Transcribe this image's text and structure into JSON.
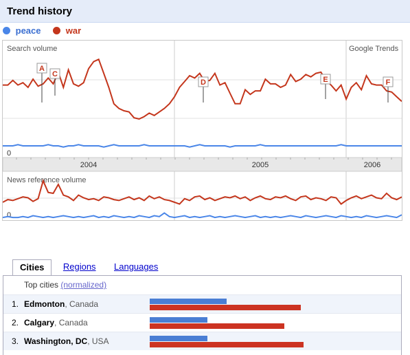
{
  "title": "Trend history",
  "legend": [
    {
      "label": "peace",
      "color": "#4a86e8"
    },
    {
      "label": "war",
      "color": "#c4361c"
    }
  ],
  "chart_data": [
    {
      "type": "line",
      "panel_label": "Search volume",
      "brand": "Google Trends",
      "zero_label": "0",
      "years": [
        "2004",
        "2005",
        "2006"
      ],
      "series": [
        {
          "name": "peace",
          "color": "#4a86e8",
          "values": [
            10,
            10,
            10,
            11,
            10,
            10,
            10,
            10,
            10,
            11,
            10,
            10,
            9,
            10,
            10,
            11,
            10,
            10,
            10,
            10,
            9,
            10,
            11,
            10,
            10,
            10,
            10,
            10,
            11,
            10,
            10,
            10,
            10,
            10,
            10,
            10,
            10,
            9,
            10,
            11,
            10,
            10,
            10,
            10,
            10,
            9,
            10,
            10,
            10,
            10,
            10,
            11,
            10,
            10,
            10,
            10,
            10,
            10,
            10,
            10,
            10,
            10,
            10,
            10,
            10,
            10,
            10,
            11,
            10,
            10,
            10,
            10,
            10,
            10,
            10,
            10,
            10,
            10,
            10,
            10
          ]
        },
        {
          "name": "war",
          "color": "#c4361c",
          "values": [
            62,
            62,
            66,
            62,
            64,
            60,
            67,
            61,
            63,
            68,
            63,
            73,
            60,
            75,
            63,
            61,
            64,
            76,
            82,
            84,
            72,
            60,
            46,
            42,
            40,
            39,
            34,
            33,
            35,
            38,
            36,
            39,
            42,
            46,
            52,
            60,
            65,
            70,
            68,
            72,
            65,
            66,
            72,
            62,
            64,
            55,
            46,
            46,
            58,
            54,
            57,
            57,
            67,
            63,
            63,
            60,
            62,
            71,
            65,
            67,
            71,
            69,
            72,
            73,
            66,
            62,
            57,
            62,
            50,
            60,
            64,
            58,
            70,
            63,
            62,
            62,
            57,
            56,
            52,
            48
          ]
        }
      ],
      "annotations": [
        "A",
        "C",
        "D",
        "E",
        "F"
      ]
    },
    {
      "type": "line",
      "panel_label": "News reference volume",
      "zero_label": "0",
      "series": [
        {
          "name": "peace",
          "values": [
            3,
            4,
            3,
            3,
            4,
            3,
            5,
            4,
            3,
            4,
            3,
            4,
            5,
            4,
            3,
            4,
            3,
            4,
            5,
            3,
            4,
            3,
            5,
            4,
            3,
            4,
            3,
            5,
            4,
            3,
            5,
            4,
            8,
            4,
            3,
            4,
            5,
            3,
            4,
            3,
            4,
            5,
            3,
            4,
            3,
            4,
            5,
            4,
            3,
            4,
            5,
            3,
            4,
            3,
            4,
            3,
            4,
            5,
            4,
            3,
            5,
            4,
            3,
            4,
            5,
            4,
            3,
            5,
            4,
            3,
            4,
            3,
            5,
            4,
            3,
            4,
            5,
            4,
            3,
            6
          ]
        },
        {
          "name": "war",
          "values": [
            20,
            23,
            22,
            24,
            26,
            25,
            21,
            24,
            44,
            31,
            30,
            40,
            28,
            26,
            22,
            28,
            25,
            23,
            24,
            22,
            26,
            25,
            23,
            22,
            24,
            26,
            23,
            25,
            22,
            27,
            24,
            26,
            23,
            22,
            20,
            18,
            24,
            22,
            26,
            27,
            23,
            25,
            22,
            24,
            26,
            25,
            27,
            24,
            26,
            22,
            25,
            27,
            24,
            23,
            26,
            25,
            27,
            24,
            22,
            26,
            27,
            23,
            25,
            24,
            22,
            26,
            25,
            18,
            22,
            25,
            27,
            24,
            26,
            28,
            25,
            24,
            30,
            25,
            23,
            26
          ]
        }
      ]
    }
  ],
  "tabs": [
    "Cities",
    "Regions",
    "Languages"
  ],
  "cities_header": "Top cities",
  "normalized_link": "(normalized)",
  "cities": [
    {
      "rank": "1.",
      "name": "Edmonton",
      "country": ", Canada",
      "peace": 0.51,
      "war": 1.0
    },
    {
      "rank": "2.",
      "name": "Calgary",
      "country": ", Canada",
      "peace": 0.38,
      "war": 0.89
    },
    {
      "rank": "3.",
      "name": "Washington, DC",
      "country": ", USA",
      "peace": 0.38,
      "war": 1.02
    }
  ]
}
